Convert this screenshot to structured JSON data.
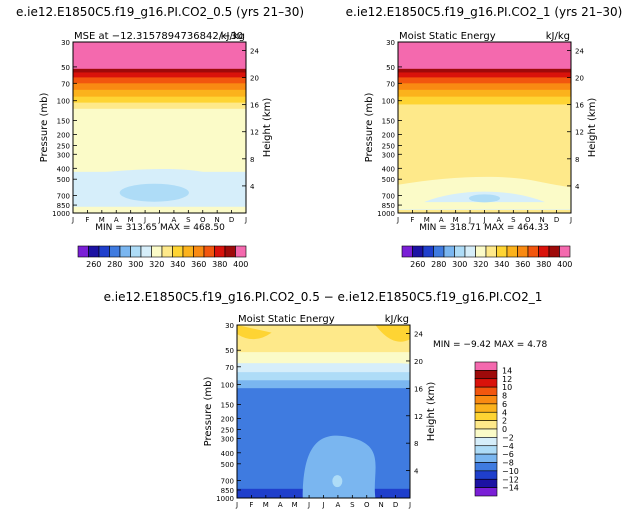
{
  "chart_data": [
    {
      "type": "heatmap",
      "title": "e.ie12.E1850C5.f19_g16.PI.CO2_0.5 (yrs 21–30)",
      "left_label": "MSE at −12.3157894736842/−30",
      "right_label": "kJ/kg",
      "stats": "MIN = 313.65  MAX = 468.50",
      "xlabel": "",
      "ylabel": "Pressure (mb)",
      "y2label": "Height (km)",
      "months": [
        "J",
        "F",
        "M",
        "A",
        "M",
        "J",
        "J",
        "A",
        "S",
        "O",
        "N",
        "D",
        "J"
      ],
      "pressure_ticks": [
        "30",
        "50",
        "70",
        "100",
        "150",
        "200",
        "250",
        "300",
        "400",
        "500",
        "700",
        "850",
        "1000"
      ],
      "pressure_values": [
        30,
        50,
        70,
        100,
        150,
        200,
        250,
        300,
        400,
        500,
        700,
        850,
        1000
      ],
      "height_ticks": [
        "4",
        "8",
        "12",
        "16",
        "20",
        "24"
      ],
      "height_values": [
        4,
        8,
        12,
        16,
        20,
        24
      ],
      "colorbar_labels": [
        "260",
        "280",
        "300",
        "320",
        "340",
        "360",
        "380",
        "400"
      ],
      "colorbar_values": [
        260,
        280,
        300,
        320,
        340,
        360,
        380,
        400
      ],
      "colors": [
        "#7a1fd6",
        "#1c12a3",
        "#1f3fcc",
        "#3f7be0",
        "#7ab6f0",
        "#aedcf7",
        "#d6eefa",
        "#fbfbc8",
        "#fee98a",
        "#fed433",
        "#fbb21c",
        "#f98a12",
        "#f2560e",
        "#d9120b",
        "#9e0a0a",
        "#f469ae"
      ]
    },
    {
      "type": "heatmap",
      "title": "e.ie12.E1850C5.f19_g16.PI.CO2_1 (yrs 21–30)",
      "left_label": "Moist Static Energy",
      "right_label": "kJ/kg",
      "stats": "MIN = 318.71  MAX = 464.33",
      "xlabel": "",
      "ylabel": "Pressure (mb)",
      "y2label": "Height (km)",
      "months": [
        "J",
        "F",
        "M",
        "A",
        "M",
        "J",
        "J",
        "A",
        "S",
        "O",
        "N",
        "D",
        "J"
      ],
      "pressure_ticks": [
        "30",
        "50",
        "70",
        "100",
        "150",
        "200",
        "250",
        "300",
        "400",
        "500",
        "700",
        "850",
        "1000"
      ],
      "pressure_values": [
        30,
        50,
        70,
        100,
        150,
        200,
        250,
        300,
        400,
        500,
        700,
        850,
        1000
      ],
      "height_ticks": [
        "4",
        "8",
        "12",
        "16",
        "20",
        "24"
      ],
      "height_values": [
        4,
        8,
        12,
        16,
        20,
        24
      ],
      "colorbar_labels": [
        "260",
        "280",
        "300",
        "320",
        "340",
        "360",
        "380",
        "400"
      ],
      "colorbar_values": [
        260,
        280,
        300,
        320,
        340,
        360,
        380,
        400
      ]
    },
    {
      "type": "heatmap",
      "title": "e.ie12.E1850C5.f19_g16.PI.CO2_0.5 − e.ie12.E1850C5.f19_g16.PI.CO2_1",
      "left_label": "Moist Static Energy",
      "right_label": "kJ/kg",
      "stats": "MIN =   −9.42  MAX =    4.78",
      "xlabel": "",
      "ylabel": "Pressure (mb)",
      "y2label": "Height (km)",
      "months": [
        "J",
        "F",
        "M",
        "A",
        "M",
        "J",
        "J",
        "A",
        "S",
        "O",
        "N",
        "D",
        "J"
      ],
      "pressure_ticks": [
        "30",
        "50",
        "70",
        "100",
        "150",
        "200",
        "250",
        "300",
        "400",
        "500",
        "700",
        "850",
        "1000"
      ],
      "pressure_values": [
        30,
        50,
        70,
        100,
        150,
        200,
        250,
        300,
        400,
        500,
        700,
        850,
        1000
      ],
      "height_ticks": [
        "4",
        "8",
        "12",
        "16",
        "20",
        "24"
      ],
      "height_values": [
        4,
        8,
        12,
        16,
        20,
        24
      ],
      "colorbar_labels": [
        "14",
        "12",
        "10",
        "8",
        "6",
        "4",
        "2",
        "0",
        "−2",
        "−4",
        "−6",
        "−8",
        "−10",
        "−12",
        "−14"
      ],
      "colorbar_values": [
        14,
        12,
        10,
        8,
        6,
        4,
        2,
        0,
        -2,
        -4,
        -6,
        -8,
        -10,
        -12,
        -14
      ],
      "colors": [
        "#f469ae",
        "#9e0a0a",
        "#d9120b",
        "#f2560e",
        "#f98a12",
        "#fbb21c",
        "#fed433",
        "#fee98a",
        "#fbfbc8",
        "#d6eefa",
        "#aedcf7",
        "#7ab6f0",
        "#3f7be0",
        "#1f3fcc",
        "#1c12a3",
        "#7a1fd6"
      ]
    }
  ]
}
